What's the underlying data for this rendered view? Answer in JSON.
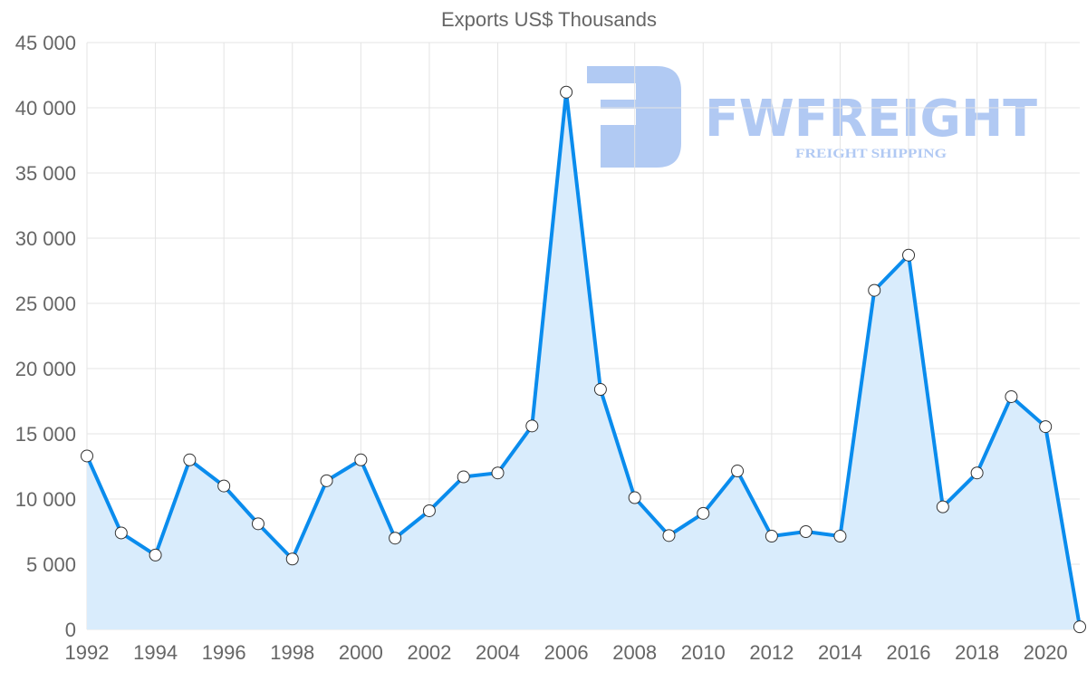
{
  "watermark": {
    "brand": "FWFREIGHT",
    "tagline": "FREIGHT SHIPPING",
    "color": "#a9c4f2"
  },
  "chart_data": {
    "type": "area",
    "title": "Exports US$ Thousands",
    "xlabel": "",
    "ylabel": "",
    "x": [
      1992,
      1993,
      1994,
      1995,
      1996,
      1997,
      1998,
      1999,
      2000,
      2001,
      2002,
      2003,
      2004,
      2005,
      2006,
      2007,
      2008,
      2009,
      2010,
      2011,
      2012,
      2013,
      2014,
      2015,
      2016,
      2017,
      2018,
      2019,
      2020,
      2021
    ],
    "series": [
      {
        "name": "Exports US$ Thousands",
        "color": "#0a8ced",
        "fill": "#d9ecfc",
        "values": [
          13300,
          7400,
          5700,
          13000,
          11000,
          8100,
          5400,
          11400,
          13000,
          7000,
          9100,
          11700,
          12000,
          15600,
          41200,
          18400,
          10100,
          7200,
          8900,
          12150,
          7150,
          7500,
          7150,
          26000,
          28700,
          9400,
          12000,
          17850,
          15550,
          200
        ]
      }
    ],
    "ylim": [
      0,
      45000
    ],
    "yticks": [
      0,
      5000,
      10000,
      15000,
      20000,
      25000,
      30000,
      35000,
      40000,
      45000
    ],
    "ytick_labels": [
      "0",
      "5 000",
      "10 000",
      "15 000",
      "20 000",
      "25 000",
      "30 000",
      "35 000",
      "40 000",
      "45 000"
    ],
    "xticks": [
      1992,
      1994,
      1996,
      1998,
      2000,
      2002,
      2004,
      2006,
      2008,
      2010,
      2012,
      2014,
      2016,
      2018,
      2020
    ],
    "xtick_labels": [
      "1992",
      "1994",
      "1996",
      "1998",
      "2000",
      "2002",
      "2004",
      "2006",
      "2008",
      "2010",
      "2012",
      "2014",
      "2016",
      "2018",
      "2020"
    ],
    "grid": true,
    "legend": "none"
  }
}
